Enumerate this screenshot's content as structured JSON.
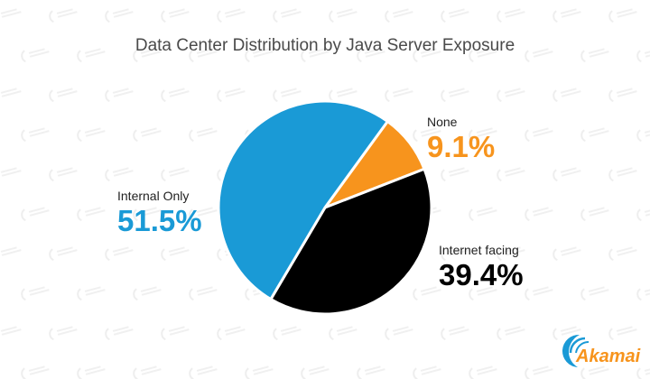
{
  "watermark": "Akamai",
  "logo_text": "Akamai",
  "chart_data": {
    "type": "pie",
    "title": "Data Center Distribution by Java Server Exposure",
    "slices": [
      {
        "label": "None",
        "value": 9.1,
        "display": "9.1%",
        "color": "#f7941d"
      },
      {
        "label": "Internet facing",
        "value": 39.4,
        "display": "39.4%",
        "color": "#000000"
      },
      {
        "label": "Internal Only",
        "value": 51.5,
        "display": "51.5%",
        "color": "#1a9ad6"
      }
    ],
    "label_value_colors": [
      "#f7941d",
      "#000000",
      "#1a9ad6"
    ]
  }
}
